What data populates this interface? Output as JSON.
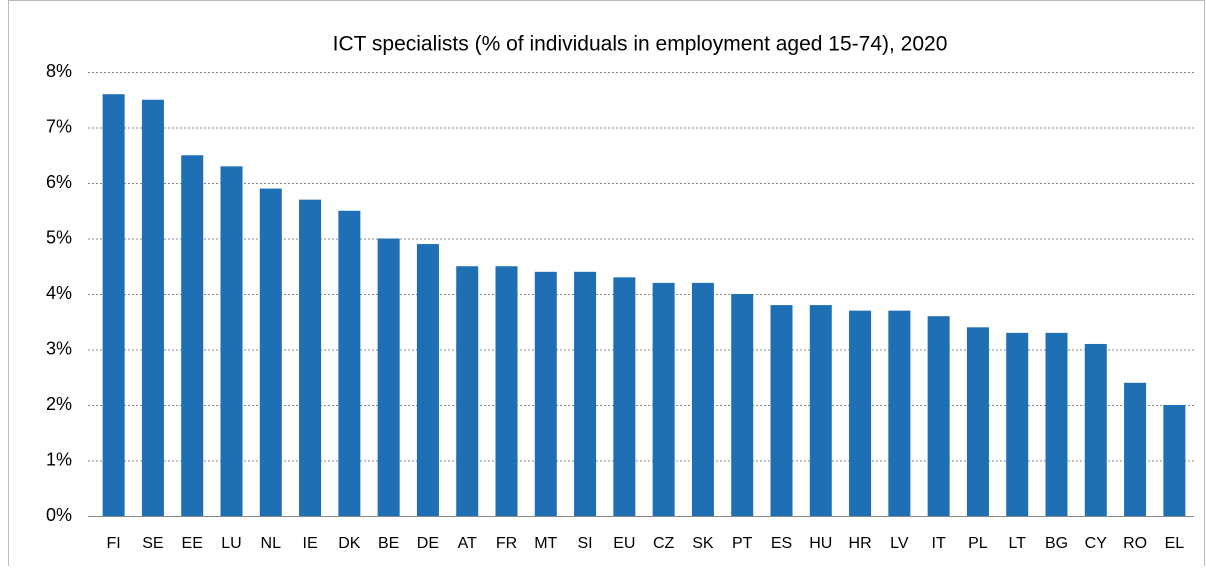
{
  "chart_data": {
    "type": "bar",
    "title": "ICT specialists (% of individuals in employment aged 15-74), 2020",
    "categories": [
      "FI",
      "SE",
      "EE",
      "LU",
      "NL",
      "IE",
      "DK",
      "BE",
      "DE",
      "AT",
      "FR",
      "MT",
      "SI",
      "EU",
      "CZ",
      "SK",
      "PT",
      "ES",
      "HU",
      "HR",
      "LV",
      "IT",
      "PL",
      "LT",
      "BG",
      "CY",
      "RO",
      "EL"
    ],
    "values": [
      7.6,
      7.5,
      6.5,
      6.3,
      5.9,
      5.7,
      5.5,
      5.0,
      4.9,
      4.5,
      4.5,
      4.4,
      4.4,
      4.3,
      4.2,
      4.2,
      4.0,
      3.8,
      3.8,
      3.7,
      3.7,
      3.6,
      3.4,
      3.3,
      3.3,
      3.1,
      2.4,
      2.0
    ],
    "color": "#1f6fb4",
    "ylim": [
      0,
      8
    ],
    "yticks": [
      {
        "value": 0,
        "label": "0%"
      },
      {
        "value": 1,
        "label": "1%"
      },
      {
        "value": 2,
        "label": "2%"
      },
      {
        "value": 3,
        "label": "3%"
      },
      {
        "value": 4,
        "label": "4%"
      },
      {
        "value": 5,
        "label": "5%"
      },
      {
        "value": 6,
        "label": "6%"
      },
      {
        "value": 7,
        "label": "7%"
      },
      {
        "value": 8,
        "label": "8%"
      }
    ],
    "grid": true
  }
}
